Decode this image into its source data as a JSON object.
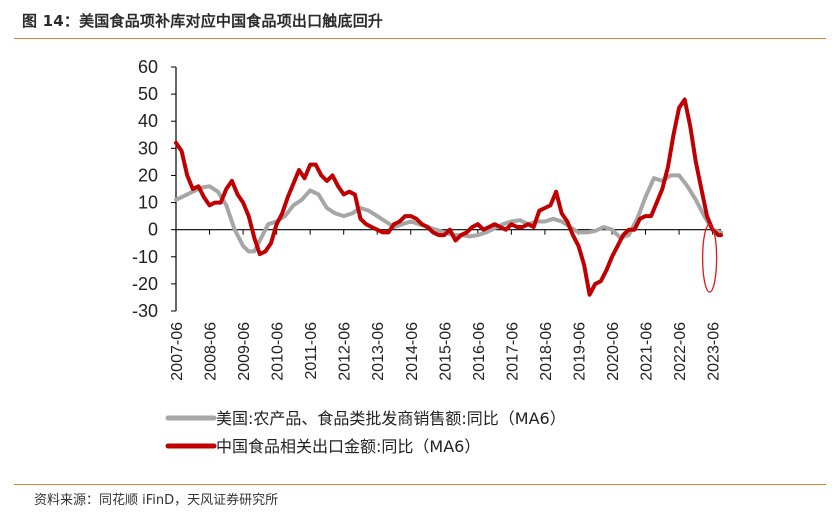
{
  "figure": {
    "title": "图 14：美国食品项补库对应中国食品项出口触底回升",
    "source": "资料来源：同花顺 iFinD，天风证券研究所"
  },
  "colors": {
    "us_series": "#a6a6a6",
    "china_series": "#c00000",
    "highlight_ellipse": "#e0161b",
    "rule": "#d9823a"
  },
  "chart_data": {
    "type": "line",
    "ylim": [
      -30,
      60
    ],
    "yticks": [
      60,
      50,
      40,
      30,
      20,
      10,
      0,
      -10,
      -20,
      -30
    ],
    "xlim": [
      "2007-06",
      "2023-09"
    ],
    "xticks": [
      "2007-06",
      "2008-06",
      "2009-06",
      "2010-06",
      "2011-06",
      "2012-06",
      "2013-06",
      "2014-06",
      "2015-06",
      "2016-06",
      "2017-06",
      "2018-06",
      "2019-06",
      "2020-06",
      "2021-06",
      "2022-06",
      "2023-06"
    ],
    "legend_position": "bottom",
    "grid": false,
    "series": [
      {
        "name": "美国:农产品、食品类批发商销售额:同比（MA6）",
        "key": "us",
        "points": [
          [
            "2007-06",
            11
          ],
          [
            "2007-09",
            12.5
          ],
          [
            "2007-12",
            14
          ],
          [
            "2008-03",
            15.5
          ],
          [
            "2008-06",
            16
          ],
          [
            "2008-09",
            14
          ],
          [
            "2008-12",
            9
          ],
          [
            "2009-03",
            0
          ],
          [
            "2009-06",
            -6
          ],
          [
            "2009-08",
            -8
          ],
          [
            "2009-10",
            -8
          ],
          [
            "2009-12",
            -4
          ],
          [
            "2010-03",
            2
          ],
          [
            "2010-06",
            3
          ],
          [
            "2010-09",
            5
          ],
          [
            "2010-12",
            9
          ],
          [
            "2011-03",
            11
          ],
          [
            "2011-06",
            14.5
          ],
          [
            "2011-09",
            13
          ],
          [
            "2011-12",
            8
          ],
          [
            "2012-03",
            6
          ],
          [
            "2012-06",
            5
          ],
          [
            "2012-09",
            6
          ],
          [
            "2012-12",
            8
          ],
          [
            "2013-03",
            7
          ],
          [
            "2013-06",
            5
          ],
          [
            "2013-09",
            3
          ],
          [
            "2013-12",
            1
          ],
          [
            "2014-03",
            2
          ],
          [
            "2014-06",
            3
          ],
          [
            "2014-09",
            2
          ],
          [
            "2014-12",
            1
          ],
          [
            "2015-03",
            0
          ],
          [
            "2015-06",
            -1
          ],
          [
            "2015-09",
            -2
          ],
          [
            "2015-12",
            -2
          ],
          [
            "2016-03",
            -2.5
          ],
          [
            "2016-06",
            -2
          ],
          [
            "2016-09",
            -1
          ],
          [
            "2016-12",
            0.5
          ],
          [
            "2017-03",
            2
          ],
          [
            "2017-06",
            3
          ],
          [
            "2017-09",
            3.5
          ],
          [
            "2017-12",
            2
          ],
          [
            "2018-03",
            3
          ],
          [
            "2018-06",
            3
          ],
          [
            "2018-09",
            4
          ],
          [
            "2018-12",
            3
          ],
          [
            "2019-03",
            1
          ],
          [
            "2019-06",
            -1
          ],
          [
            "2019-09",
            -1
          ],
          [
            "2019-12",
            -0.5
          ],
          [
            "2020-03",
            1
          ],
          [
            "2020-06",
            0
          ],
          [
            "2020-09",
            -3
          ],
          [
            "2020-12",
            -2
          ],
          [
            "2021-03",
            4
          ],
          [
            "2021-06",
            12
          ],
          [
            "2021-09",
            19
          ],
          [
            "2021-12",
            18
          ],
          [
            "2022-03",
            20
          ],
          [
            "2022-06",
            20
          ],
          [
            "2022-09",
            16
          ],
          [
            "2022-12",
            11
          ],
          [
            "2023-03",
            5
          ],
          [
            "2023-06",
            0
          ],
          [
            "2023-09",
            -1
          ]
        ]
      },
      {
        "name": "中国食品相关出口金额:同比（MA6）",
        "key": "china",
        "points": [
          [
            "2007-06",
            32
          ],
          [
            "2007-08",
            29
          ],
          [
            "2007-10",
            20
          ],
          [
            "2007-12",
            15
          ],
          [
            "2008-02",
            16
          ],
          [
            "2008-04",
            12
          ],
          [
            "2008-06",
            9
          ],
          [
            "2008-08",
            10
          ],
          [
            "2008-10",
            10
          ],
          [
            "2008-12",
            15
          ],
          [
            "2009-02",
            18
          ],
          [
            "2009-04",
            13
          ],
          [
            "2009-06",
            10
          ],
          [
            "2009-08",
            5
          ],
          [
            "2009-10",
            -3
          ],
          [
            "2009-12",
            -9
          ],
          [
            "2010-02",
            -8
          ],
          [
            "2010-04",
            -5
          ],
          [
            "2010-06",
            2
          ],
          [
            "2010-08",
            6
          ],
          [
            "2010-10",
            12
          ],
          [
            "2010-12",
            17
          ],
          [
            "2011-02",
            22
          ],
          [
            "2011-04",
            19
          ],
          [
            "2011-06",
            24
          ],
          [
            "2011-08",
            24
          ],
          [
            "2011-10",
            20
          ],
          [
            "2011-12",
            18
          ],
          [
            "2012-02",
            20
          ],
          [
            "2012-04",
            16
          ],
          [
            "2012-06",
            13
          ],
          [
            "2012-08",
            14
          ],
          [
            "2012-10",
            13
          ],
          [
            "2012-12",
            4
          ],
          [
            "2013-02",
            2
          ],
          [
            "2013-04",
            1
          ],
          [
            "2013-06",
            0
          ],
          [
            "2013-08",
            -1
          ],
          [
            "2013-10",
            -1
          ],
          [
            "2013-12",
            2
          ],
          [
            "2014-02",
            3
          ],
          [
            "2014-04",
            5
          ],
          [
            "2014-06",
            5
          ],
          [
            "2014-08",
            4
          ],
          [
            "2014-10",
            2
          ],
          [
            "2014-12",
            1
          ],
          [
            "2015-02",
            -1
          ],
          [
            "2015-04",
            -2
          ],
          [
            "2015-06",
            -2
          ],
          [
            "2015-08",
            0
          ],
          [
            "2015-10",
            -4
          ],
          [
            "2015-12",
            -2
          ],
          [
            "2016-02",
            -1
          ],
          [
            "2016-04",
            1
          ],
          [
            "2016-06",
            2
          ],
          [
            "2016-08",
            0
          ],
          [
            "2016-10",
            1
          ],
          [
            "2016-12",
            2
          ],
          [
            "2017-02",
            1
          ],
          [
            "2017-04",
            0
          ],
          [
            "2017-06",
            2
          ],
          [
            "2017-08",
            1
          ],
          [
            "2017-10",
            1
          ],
          [
            "2017-12",
            2
          ],
          [
            "2018-02",
            1
          ],
          [
            "2018-04",
            7
          ],
          [
            "2018-06",
            8
          ],
          [
            "2018-08",
            9
          ],
          [
            "2018-10",
            14
          ],
          [
            "2018-12",
            6
          ],
          [
            "2019-02",
            3
          ],
          [
            "2019-04",
            -2
          ],
          [
            "2019-06",
            -6
          ],
          [
            "2019-08",
            -13
          ],
          [
            "2019-10",
            -24
          ],
          [
            "2019-12",
            -20
          ],
          [
            "2020-02",
            -19
          ],
          [
            "2020-04",
            -15
          ],
          [
            "2020-06",
            -10
          ],
          [
            "2020-08",
            -6
          ],
          [
            "2020-10",
            -2
          ],
          [
            "2020-12",
            0
          ],
          [
            "2021-02",
            0
          ],
          [
            "2021-04",
            4
          ],
          [
            "2021-06",
            5
          ],
          [
            "2021-08",
            5
          ],
          [
            "2021-10",
            10
          ],
          [
            "2021-12",
            15
          ],
          [
            "2022-02",
            23
          ],
          [
            "2022-04",
            35
          ],
          [
            "2022-06",
            45
          ],
          [
            "2022-08",
            48
          ],
          [
            "2022-10",
            38
          ],
          [
            "2022-12",
            25
          ],
          [
            "2023-02",
            15
          ],
          [
            "2023-04",
            5
          ],
          [
            "2023-06",
            0
          ],
          [
            "2023-08",
            -2
          ],
          [
            "2023-09",
            -2
          ]
        ]
      }
    ],
    "annotation": {
      "type": "ellipse",
      "x_center": "2023-06",
      "y_range": [
        -23,
        2
      ],
      "color": "#e0161b"
    }
  }
}
